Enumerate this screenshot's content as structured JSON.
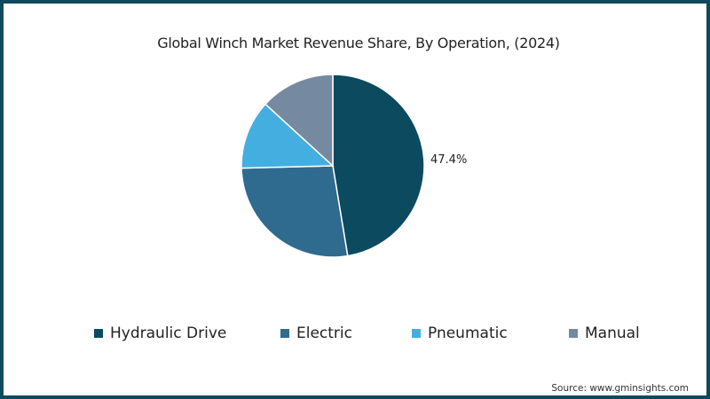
{
  "chart_data": {
    "type": "pie",
    "title": "Global Winch Market Revenue Share, By Operation, (2024)",
    "categories": [
      "Hydraulic Drive",
      "Electric",
      "Pneumatic",
      "Manual"
    ],
    "values": [
      47.4,
      27.2,
      12.2,
      13.2
    ],
    "colors": [
      "#0c4a60",
      "#2e6b8f",
      "#45aee0",
      "#758aa0"
    ],
    "data_labels": [
      "47.4%",
      "",
      "",
      ""
    ],
    "legend_position": "bottom",
    "start_angle_deg": 0,
    "direction": "clockwise"
  },
  "title": "Global Winch Market Revenue Share, By Operation, (2024)",
  "legend": [
    {
      "label": "Hydraulic Drive",
      "color": "#0c4a60"
    },
    {
      "label": "Electric",
      "color": "#2e6b8f"
    },
    {
      "label": "Pneumatic",
      "color": "#45aee0"
    },
    {
      "label": "Manual",
      "color": "#758aa0"
    }
  ],
  "label_hydraulic": "47.4%",
  "source": "Source: www.gminsights.com",
  "frame_color": "#0e4a5e"
}
